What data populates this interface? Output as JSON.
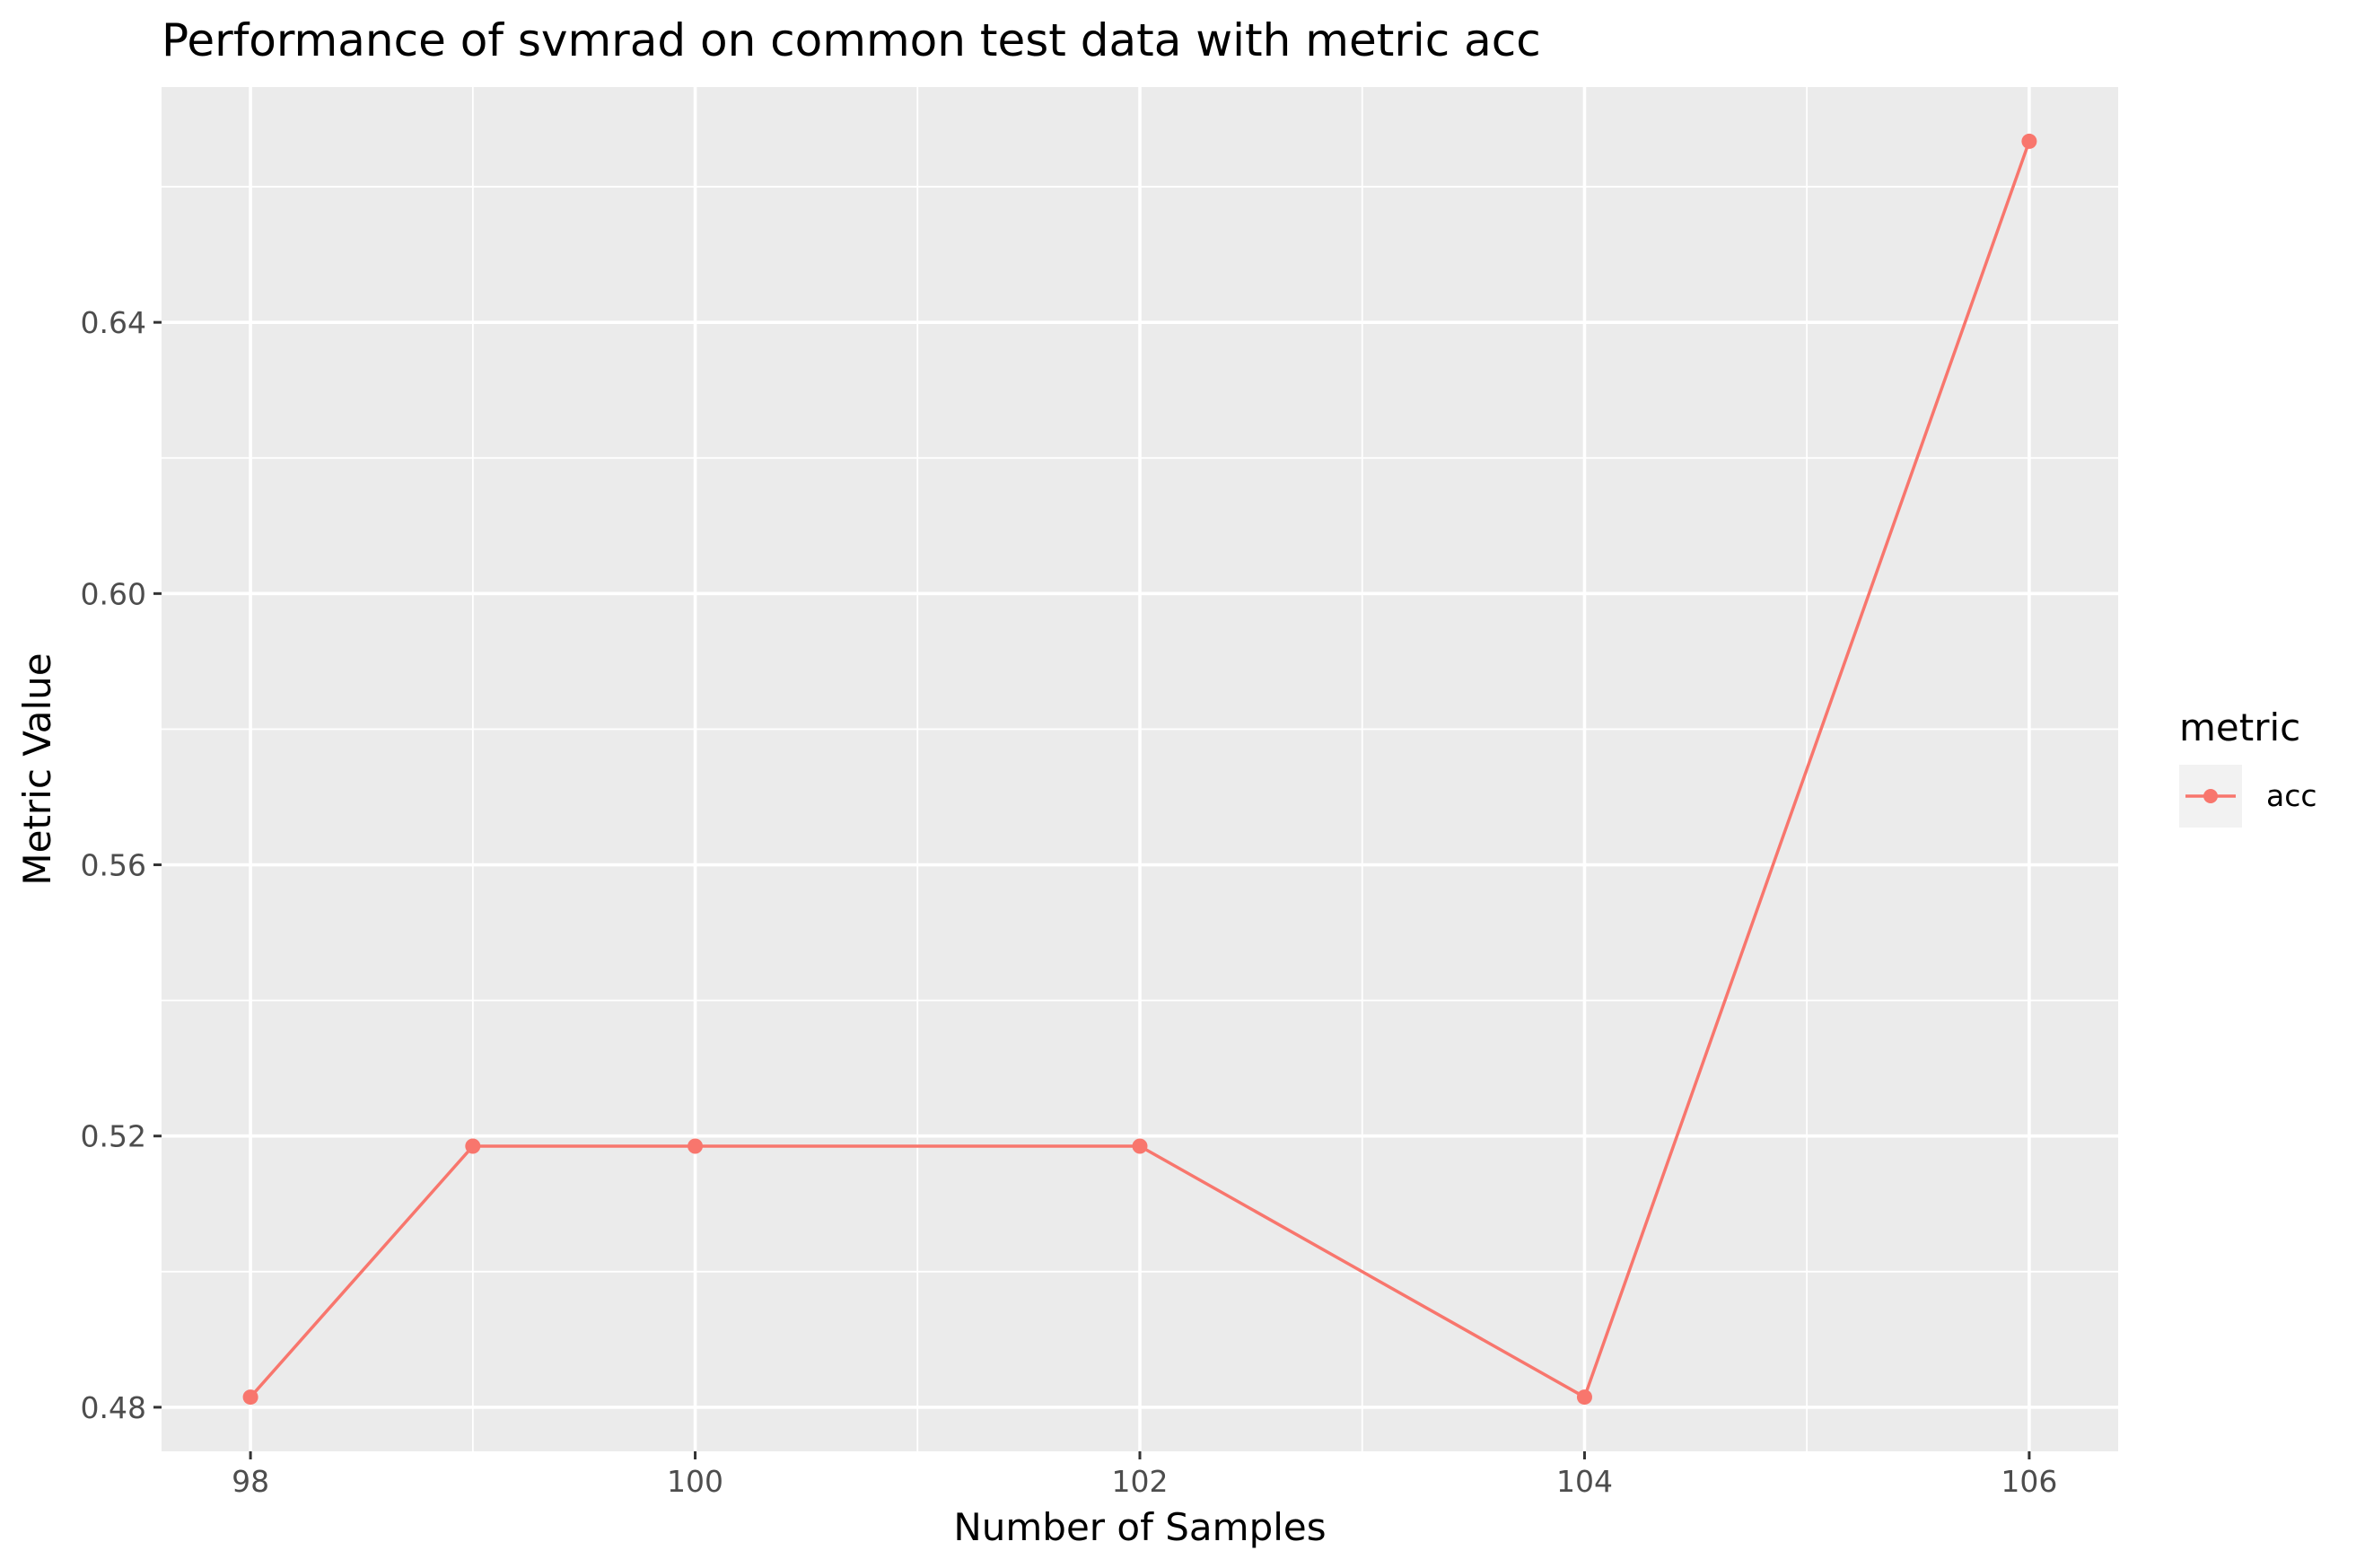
{
  "chart_data": {
    "type": "line",
    "title": "Performance of svmrad on common test data with metric acc",
    "xlabel": "Number of Samples",
    "ylabel": "Metric Value",
    "x": [
      98,
      99,
      100,
      102,
      104,
      106
    ],
    "series": [
      {
        "name": "acc",
        "color": "#F8766D",
        "values": [
          0.4815,
          0.5185,
          0.5185,
          0.5185,
          0.4815,
          0.6667
        ]
      }
    ],
    "xlim": [
      97.6,
      106.4
    ],
    "ylim": [
      0.4735,
      0.6747
    ],
    "x_ticks": [
      98,
      100,
      102,
      104,
      106
    ],
    "x_tick_labels": [
      "98",
      "100",
      "102",
      "104",
      "106"
    ],
    "x_minor_ticks": [
      99,
      101,
      103,
      105
    ],
    "y_ticks": [
      0.48,
      0.52,
      0.56,
      0.6,
      0.64
    ],
    "y_tick_labels": [
      "0.48",
      "0.52",
      "0.56",
      "0.60",
      "0.64"
    ],
    "y_minor_ticks": [
      0.5,
      0.54,
      0.58,
      0.62,
      0.66
    ],
    "legend_title": "metric",
    "legend_position": "right",
    "grid": true,
    "panel_background": "#EBEBEB",
    "grid_color": "#FFFFFF"
  }
}
